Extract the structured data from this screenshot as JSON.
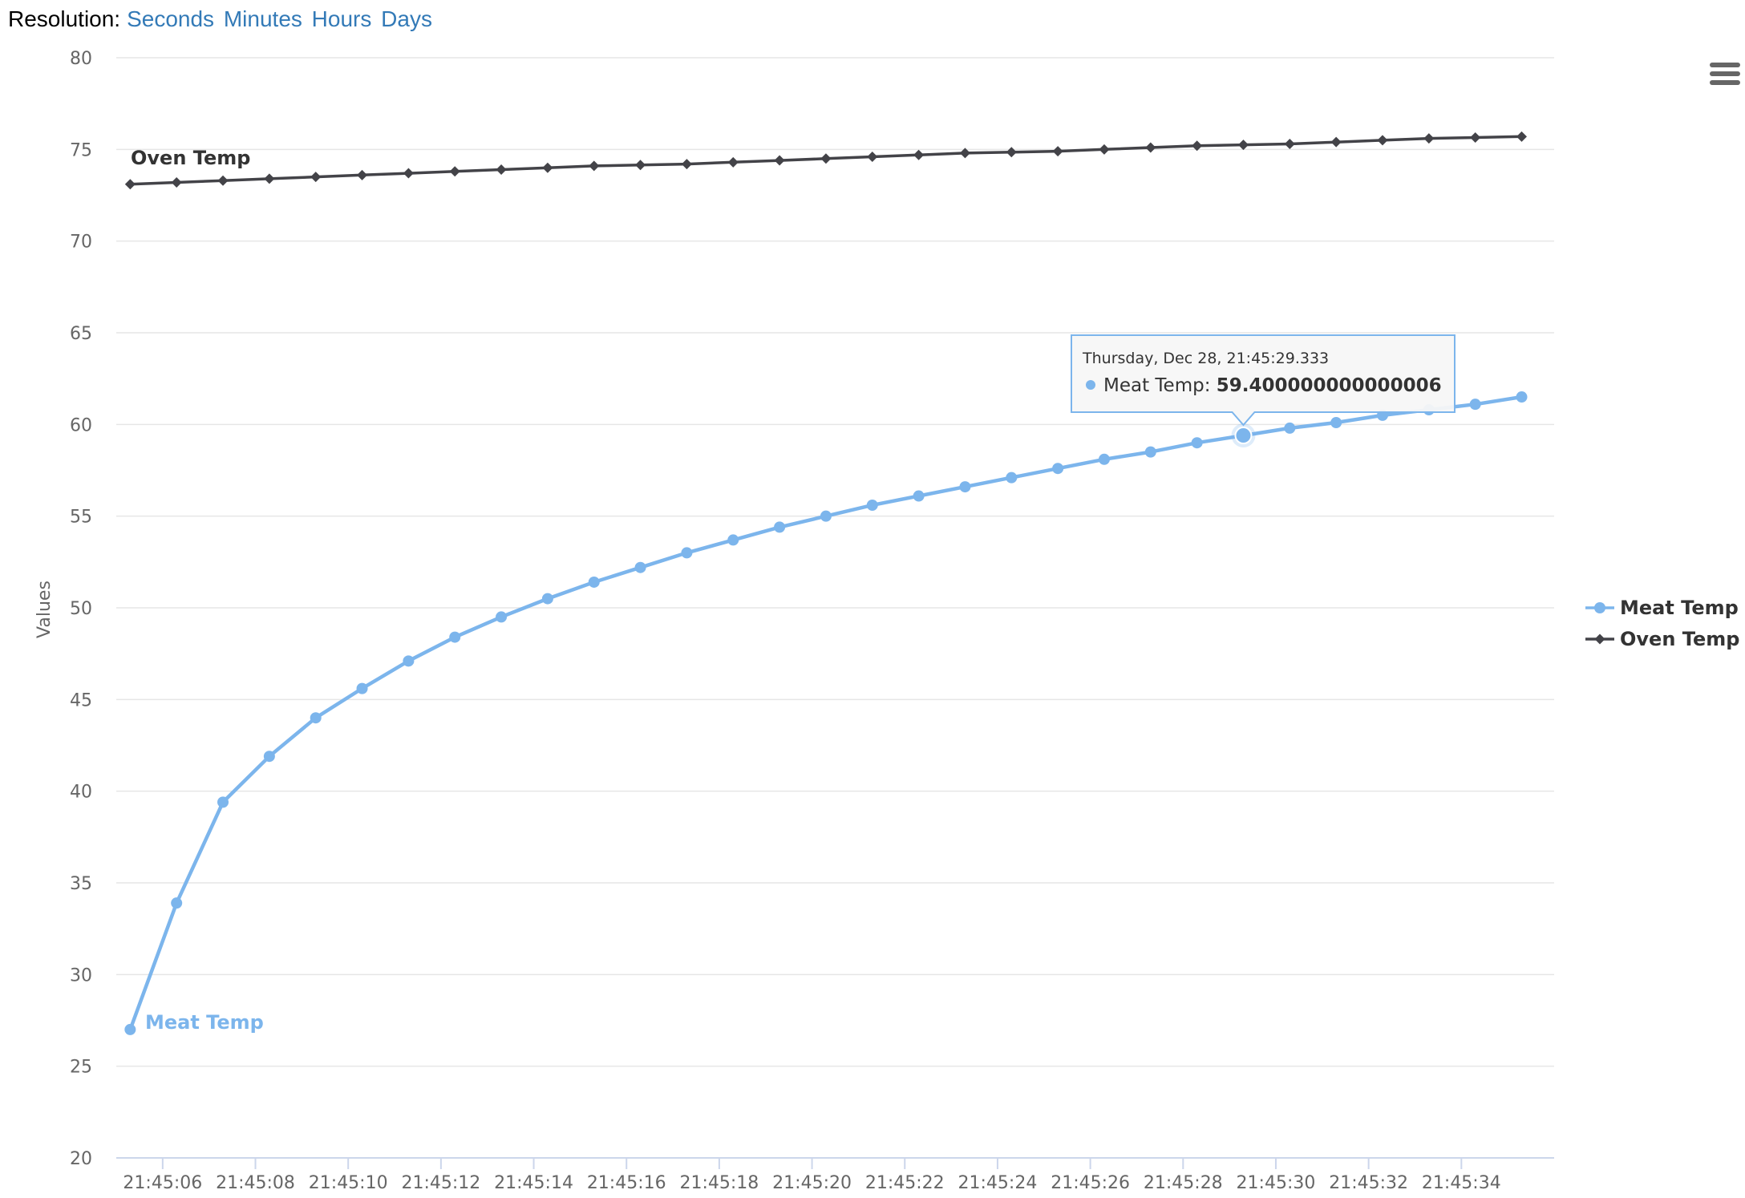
{
  "toolbar": {
    "resolution_label": "Resolution:",
    "options": [
      "Seconds",
      "Minutes",
      "Hours",
      "Days"
    ]
  },
  "menu": {
    "icon": "hamburger-menu-icon"
  },
  "chart_data": {
    "type": "line",
    "title": "",
    "xlabel": "",
    "ylabel": "Values",
    "ylim": [
      20,
      80
    ],
    "y_ticks": [
      20,
      25,
      30,
      35,
      40,
      45,
      50,
      55,
      60,
      65,
      70,
      75,
      80
    ],
    "grid": true,
    "legend_position": "right",
    "x_tick_labels": [
      "21:45:06",
      "21:45:08",
      "21:45:10",
      "21:45:12",
      "21:45:14",
      "21:45:16",
      "21:45:18",
      "21:45:20",
      "21:45:22",
      "21:45:24",
      "21:45:26",
      "21:45:28",
      "21:45:30",
      "21:45:32",
      "21:45:34"
    ],
    "x": [
      "21:45:05.3",
      "21:45:06.3",
      "21:45:07.3",
      "21:45:08.3",
      "21:45:09.3",
      "21:45:10.3",
      "21:45:11.3",
      "21:45:12.3",
      "21:45:13.3",
      "21:45:14.3",
      "21:45:15.3",
      "21:45:16.3",
      "21:45:17.3",
      "21:45:18.3",
      "21:45:19.3",
      "21:45:20.3",
      "21:45:21.3",
      "21:45:22.3",
      "21:45:23.3",
      "21:45:24.3",
      "21:45:25.3",
      "21:45:26.3",
      "21:45:27.3",
      "21:45:28.3",
      "21:45:29.3",
      "21:45:30.3",
      "21:45:31.3",
      "21:45:32.3",
      "21:45:33.3",
      "21:45:34.3",
      "21:45:35.3"
    ],
    "series": [
      {
        "name": "Meat Temp",
        "color": "#7cb5ec",
        "marker": "circle",
        "values": [
          27.0,
          33.9,
          39.4,
          41.9,
          44.0,
          45.6,
          47.1,
          48.4,
          49.5,
          50.5,
          51.4,
          52.2,
          53.0,
          53.7,
          54.4,
          55.0,
          55.6,
          56.1,
          56.6,
          57.1,
          57.6,
          58.1,
          58.5,
          59.0,
          59.4,
          59.8,
          60.1,
          60.5,
          60.8,
          61.1,
          61.5
        ]
      },
      {
        "name": "Oven Temp",
        "color": "#434348",
        "marker": "diamond",
        "values": [
          73.1,
          73.2,
          73.3,
          73.4,
          73.5,
          73.6,
          73.7,
          73.8,
          73.9,
          74.0,
          74.1,
          74.15,
          74.2,
          74.3,
          74.4,
          74.5,
          74.6,
          74.7,
          74.8,
          74.85,
          74.9,
          75.0,
          75.1,
          75.2,
          75.25,
          75.3,
          75.4,
          75.5,
          75.6,
          75.65,
          75.7
        ]
      }
    ],
    "tooltip": {
      "header": "Thursday, Dec 28, 21:45:29.333",
      "series_name": "Meat Temp:",
      "value_text": "59.400000000000006",
      "point_index": 24
    }
  }
}
